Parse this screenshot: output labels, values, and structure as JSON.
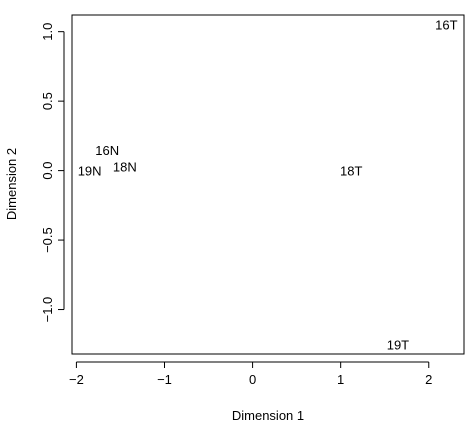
{
  "chart_data": {
    "type": "scatter",
    "title": "",
    "xlabel": "Dimension 1",
    "ylabel": "Dimension 2",
    "xlim": [
      -2.05,
      2.4
    ],
    "ylim": [
      -1.32,
      1.12
    ],
    "x_ticks": [
      -2,
      -1,
      0,
      1,
      2
    ],
    "x_tick_labels": [
      "−2",
      "−1",
      "0",
      "1",
      "2"
    ],
    "y_ticks": [
      -1.0,
      -0.5,
      0.0,
      0.5,
      1.0
    ],
    "y_tick_labels": [
      "−1.0",
      "−0.5",
      "0.0",
      "0.5",
      "1.0"
    ],
    "grid": false,
    "points": [
      {
        "label": "16T",
        "x": 2.2,
        "y": 1.05
      },
      {
        "label": "16N",
        "x": -1.65,
        "y": 0.15
      },
      {
        "label": "18N",
        "x": -1.45,
        "y": 0.03
      },
      {
        "label": "19N",
        "x": -1.85,
        "y": 0.0
      },
      {
        "label": "18T",
        "x": 1.12,
        "y": 0.0
      },
      {
        "label": "19T",
        "x": 1.65,
        "y": -1.25
      }
    ]
  }
}
